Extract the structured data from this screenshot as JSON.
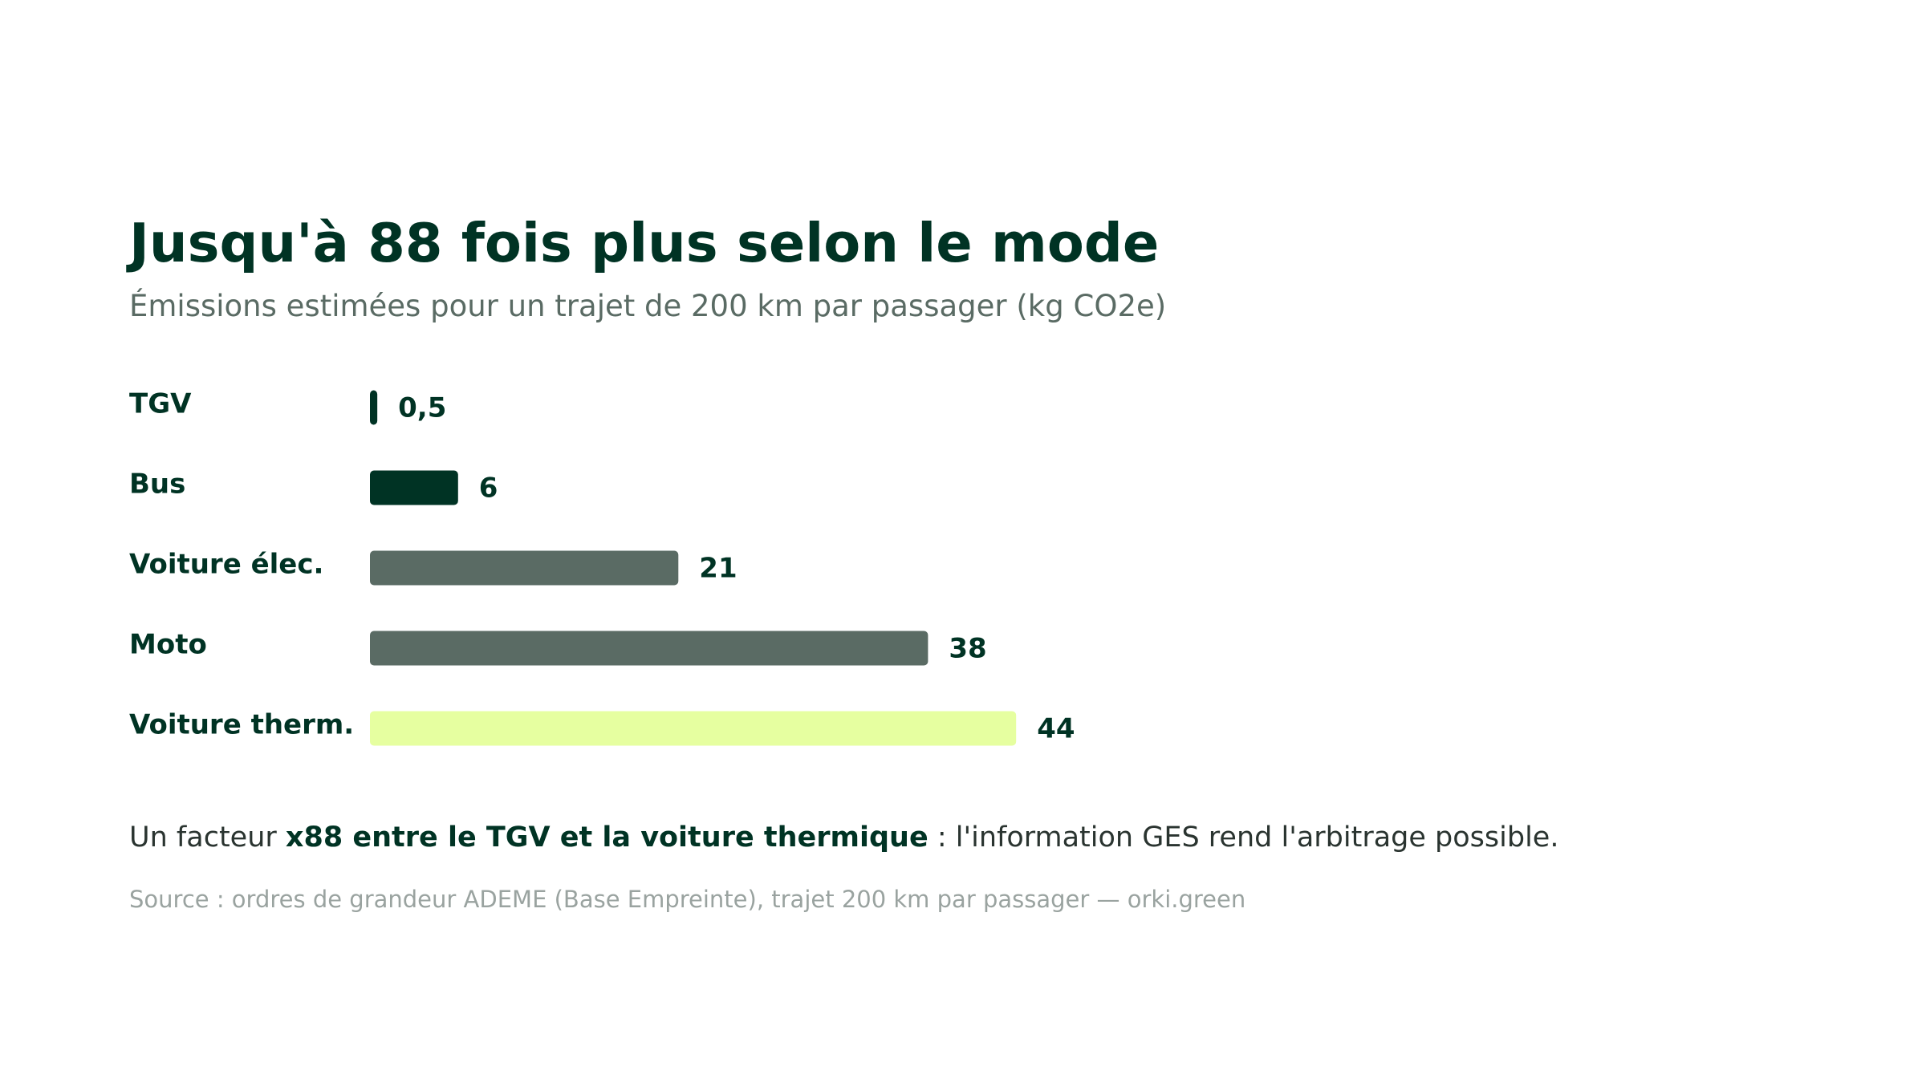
{
  "chart_data": {
    "type": "bar",
    "orientation": "horizontal",
    "title": "Jusqu'à 88 fois plus selon le mode",
    "subtitle": "Émissions estimées pour un trajet de 200 km par passager (kg CO2e)",
    "categories": [
      "TGV",
      "Bus",
      "Voiture élec.",
      "Moto",
      "Voiture therm."
    ],
    "values": [
      0.5,
      6,
      21,
      38,
      44
    ],
    "value_labels": [
      "0,5",
      "6",
      "21",
      "38",
      "44"
    ],
    "colors": [
      "#003324",
      "#003324",
      "#5a6b64",
      "#5a6b64",
      "#e6ffa0"
    ],
    "annotation": {
      "before": "Un facteur ",
      "emphasis": "x88 entre le TGV et la voiture thermique",
      "after": " : l'information GES rend l'arbitrage possible."
    },
    "source": "Source : ordres de grandeur ADEME (Base Empreinte), trajet 200 km par passager — orki.green"
  }
}
